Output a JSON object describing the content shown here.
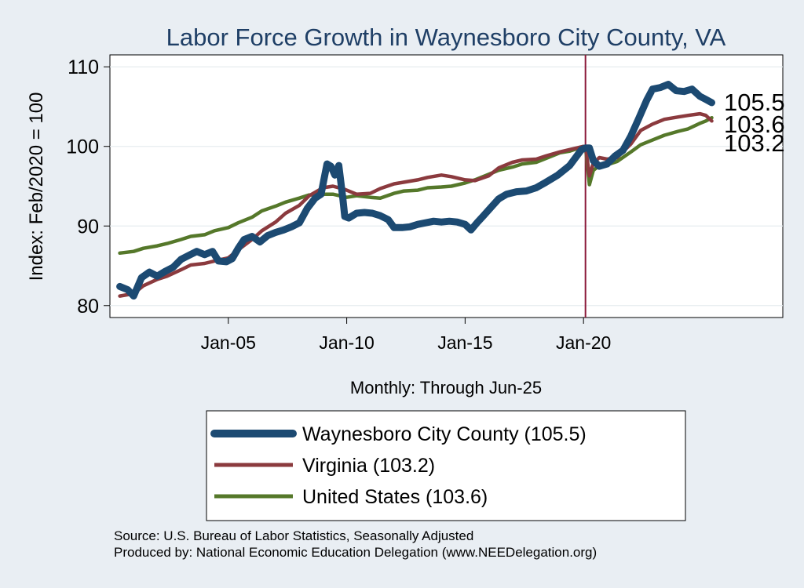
{
  "chart_data": {
    "type": "line",
    "title": "Labor Force Growth in Waynesboro City  County, VA",
    "xlabel": "Monthly: Through Jun-25",
    "ylabel": "Index: Feb/2020 = 100",
    "xlim": [
      "2000-01",
      "2028-06"
    ],
    "ylim": [
      78.5,
      111.5
    ],
    "x_ticks": [
      {
        "date": "2005-01",
        "label": "Jan-05"
      },
      {
        "date": "2010-01",
        "label": "Jan-10"
      },
      {
        "date": "2015-01",
        "label": "Jan-15"
      },
      {
        "date": "2020-01",
        "label": "Jan-20"
      }
    ],
    "y_ticks": [
      80,
      90,
      100,
      110
    ],
    "grid": true,
    "reference_line": {
      "x": "2020-02",
      "color": "#8b1a3a"
    },
    "colors": {
      "waynesboro": "#1c4a72",
      "virginia": "#8b3a3e",
      "united_states": "#55782a",
      "background": "#e9eef3",
      "plot_background": "#ffffff",
      "title": "#1f3f66"
    },
    "end_labels": [
      "105.5",
      "103.6",
      "103.2"
    ],
    "legend": {
      "placement": "bottom",
      "entries": [
        "Waynesboro City  County (105.5)",
        "Virginia (103.2)",
        "United States (103.6)"
      ]
    },
    "series": [
      {
        "name": "Waynesboro City  County (105.5)",
        "points": [
          [
            "2000-06",
            82.4
          ],
          [
            "2000-10",
            82.0
          ],
          [
            "2001-01",
            81.2
          ],
          [
            "2001-05",
            83.5
          ],
          [
            "2001-09",
            84.2
          ],
          [
            "2002-01",
            83.7
          ],
          [
            "2002-05",
            84.3
          ],
          [
            "2002-09",
            84.8
          ],
          [
            "2003-01",
            85.8
          ],
          [
            "2003-05",
            86.3
          ],
          [
            "2003-09",
            86.8
          ],
          [
            "2004-01",
            86.4
          ],
          [
            "2004-05",
            86.8
          ],
          [
            "2004-08",
            85.6
          ],
          [
            "2004-12",
            85.5
          ],
          [
            "2005-03",
            85.9
          ],
          [
            "2005-06",
            87.2
          ],
          [
            "2005-09",
            88.3
          ],
          [
            "2006-01",
            88.7
          ],
          [
            "2006-05",
            88.0
          ],
          [
            "2006-09",
            88.8
          ],
          [
            "2007-01",
            89.2
          ],
          [
            "2007-05",
            89.5
          ],
          [
            "2007-09",
            89.9
          ],
          [
            "2008-01",
            90.4
          ],
          [
            "2008-05",
            92.2
          ],
          [
            "2008-09",
            93.5
          ],
          [
            "2008-12",
            94.0
          ],
          [
            "2009-02",
            96.5
          ],
          [
            "2009-03",
            97.8
          ],
          [
            "2009-05",
            97.5
          ],
          [
            "2009-07",
            96.4
          ],
          [
            "2009-09",
            97.6
          ],
          [
            "2009-11",
            93.5
          ],
          [
            "2009-12",
            91.2
          ],
          [
            "2010-02",
            91.0
          ],
          [
            "2010-06",
            91.6
          ],
          [
            "2010-10",
            91.7
          ],
          [
            "2011-02",
            91.6
          ],
          [
            "2011-06",
            91.3
          ],
          [
            "2011-10",
            90.8
          ],
          [
            "2012-01",
            89.8
          ],
          [
            "2012-05",
            89.8
          ],
          [
            "2012-09",
            89.9
          ],
          [
            "2013-01",
            90.2
          ],
          [
            "2013-05",
            90.4
          ],
          [
            "2013-09",
            90.6
          ],
          [
            "2014-01",
            90.5
          ],
          [
            "2014-05",
            90.6
          ],
          [
            "2014-09",
            90.5
          ],
          [
            "2015-01",
            90.2
          ],
          [
            "2015-04",
            89.5
          ],
          [
            "2015-07",
            90.4
          ],
          [
            "2015-10",
            91.2
          ],
          [
            "2016-02",
            92.3
          ],
          [
            "2016-06",
            93.4
          ],
          [
            "2016-10",
            94.0
          ],
          [
            "2017-03",
            94.3
          ],
          [
            "2017-08",
            94.4
          ],
          [
            "2018-01",
            94.8
          ],
          [
            "2018-06",
            95.5
          ],
          [
            "2018-12",
            96.4
          ],
          [
            "2019-06",
            97.6
          ],
          [
            "2019-12",
            99.6
          ],
          [
            "2020-02",
            99.8
          ],
          [
            "2020-04",
            99.8
          ],
          [
            "2020-06",
            98.2
          ],
          [
            "2020-09",
            97.5
          ],
          [
            "2021-01",
            97.8
          ],
          [
            "2021-05",
            98.8
          ],
          [
            "2021-09",
            99.5
          ],
          [
            "2022-01",
            101.3
          ],
          [
            "2022-05",
            103.5
          ],
          [
            "2022-09",
            105.8
          ],
          [
            "2022-12",
            107.2
          ],
          [
            "2023-04",
            107.4
          ],
          [
            "2023-08",
            107.8
          ],
          [
            "2023-12",
            107.0
          ],
          [
            "2024-04",
            106.9
          ],
          [
            "2024-08",
            107.2
          ],
          [
            "2024-12",
            106.3
          ],
          [
            "2025-03",
            105.9
          ],
          [
            "2025-06",
            105.5
          ]
        ]
      },
      {
        "name": "Virginia (103.2)",
        "points": [
          [
            "2000-06",
            81.2
          ],
          [
            "2001-01",
            81.5
          ],
          [
            "2001-06",
            82.5
          ],
          [
            "2002-01",
            83.3
          ],
          [
            "2002-06",
            83.7
          ],
          [
            "2003-01",
            84.5
          ],
          [
            "2003-06",
            85.1
          ],
          [
            "2004-01",
            85.3
          ],
          [
            "2004-06",
            85.6
          ],
          [
            "2005-01",
            86.0
          ],
          [
            "2005-06",
            87.0
          ],
          [
            "2006-01",
            88.3
          ],
          [
            "2006-06",
            89.4
          ],
          [
            "2007-01",
            90.5
          ],
          [
            "2007-06",
            91.6
          ],
          [
            "2008-01",
            92.6
          ],
          [
            "2008-06",
            93.8
          ],
          [
            "2009-01",
            94.8
          ],
          [
            "2009-06",
            95.0
          ],
          [
            "2009-12",
            94.6
          ],
          [
            "2010-06",
            94.0
          ],
          [
            "2011-01",
            94.1
          ],
          [
            "2011-06",
            94.7
          ],
          [
            "2012-01",
            95.3
          ],
          [
            "2012-06",
            95.5
          ],
          [
            "2013-01",
            95.8
          ],
          [
            "2013-06",
            96.1
          ],
          [
            "2014-01",
            96.4
          ],
          [
            "2014-06",
            96.2
          ],
          [
            "2015-01",
            95.8
          ],
          [
            "2015-06",
            95.7
          ],
          [
            "2016-01",
            96.3
          ],
          [
            "2016-06",
            97.3
          ],
          [
            "2017-01",
            98.0
          ],
          [
            "2017-06",
            98.3
          ],
          [
            "2018-01",
            98.4
          ],
          [
            "2018-06",
            98.8
          ],
          [
            "2019-01",
            99.3
          ],
          [
            "2019-06",
            99.6
          ],
          [
            "2020-01",
            100.0
          ],
          [
            "2020-02",
            100.0
          ],
          [
            "2020-04",
            96.3
          ],
          [
            "2020-06",
            97.9
          ],
          [
            "2020-09",
            98.6
          ],
          [
            "2021-01",
            98.4
          ],
          [
            "2021-06",
            98.6
          ],
          [
            "2022-01",
            100.3
          ],
          [
            "2022-06",
            102.0
          ],
          [
            "2022-12",
            102.8
          ],
          [
            "2023-06",
            103.4
          ],
          [
            "2024-01",
            103.7
          ],
          [
            "2024-06",
            103.9
          ],
          [
            "2024-12",
            104.1
          ],
          [
            "2025-03",
            103.9
          ],
          [
            "2025-06",
            103.2
          ]
        ]
      },
      {
        "name": "United States (103.6)",
        "points": [
          [
            "2000-06",
            86.6
          ],
          [
            "2001-01",
            86.8
          ],
          [
            "2001-06",
            87.2
          ],
          [
            "2002-01",
            87.5
          ],
          [
            "2002-06",
            87.8
          ],
          [
            "2003-01",
            88.3
          ],
          [
            "2003-06",
            88.7
          ],
          [
            "2004-01",
            88.9
          ],
          [
            "2004-06",
            89.4
          ],
          [
            "2005-01",
            89.8
          ],
          [
            "2005-06",
            90.4
          ],
          [
            "2006-01",
            91.1
          ],
          [
            "2006-06",
            91.9
          ],
          [
            "2007-01",
            92.5
          ],
          [
            "2007-06",
            93.0
          ],
          [
            "2008-01",
            93.5
          ],
          [
            "2008-06",
            93.9
          ],
          [
            "2009-01",
            94.0
          ],
          [
            "2009-06",
            94.0
          ],
          [
            "2010-01",
            93.6
          ],
          [
            "2010-06",
            93.8
          ],
          [
            "2011-01",
            93.6
          ],
          [
            "2011-06",
            93.5
          ],
          [
            "2012-01",
            94.1
          ],
          [
            "2012-06",
            94.4
          ],
          [
            "2013-01",
            94.5
          ],
          [
            "2013-06",
            94.8
          ],
          [
            "2014-01",
            94.9
          ],
          [
            "2014-06",
            95.0
          ],
          [
            "2015-01",
            95.4
          ],
          [
            "2015-06",
            95.8
          ],
          [
            "2016-01",
            96.5
          ],
          [
            "2016-06",
            97.0
          ],
          [
            "2017-01",
            97.4
          ],
          [
            "2017-06",
            97.8
          ],
          [
            "2018-01",
            98.0
          ],
          [
            "2018-06",
            98.5
          ],
          [
            "2019-01",
            99.2
          ],
          [
            "2019-06",
            99.4
          ],
          [
            "2020-01",
            100.0
          ],
          [
            "2020-02",
            100.0
          ],
          [
            "2020-04",
            95.2
          ],
          [
            "2020-06",
            97.0
          ],
          [
            "2020-09",
            97.6
          ],
          [
            "2021-01",
            97.7
          ],
          [
            "2021-06",
            98.1
          ],
          [
            "2022-01",
            99.3
          ],
          [
            "2022-06",
            100.2
          ],
          [
            "2022-12",
            100.8
          ],
          [
            "2023-06",
            101.4
          ],
          [
            "2024-01",
            101.9
          ],
          [
            "2024-06",
            102.2
          ],
          [
            "2024-12",
            102.9
          ],
          [
            "2025-03",
            103.2
          ],
          [
            "2025-06",
            103.6
          ]
        ]
      }
    ]
  },
  "notes": {
    "source": "Source: U.S. Bureau of Labor Statistics, Seasonally Adjusted",
    "produced_by": "Produced by: National Economic Education Delegation (www.NEEDelegation.org)"
  }
}
